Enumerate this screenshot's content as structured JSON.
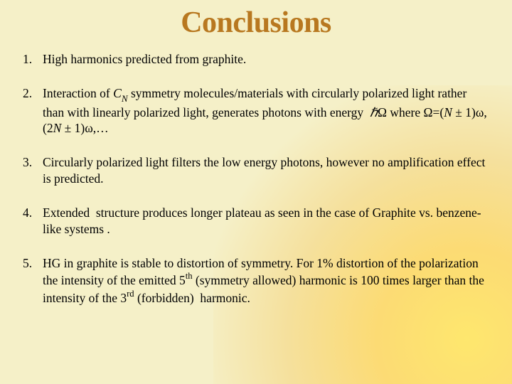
{
  "title": "Conclusions",
  "colors": {
    "background": "#f5f0c8",
    "title_color": "#b87820",
    "text_color": "#000000",
    "gradient_inner": "#ffe664",
    "gradient_outer": "#f5f0c8"
  },
  "typography": {
    "title_font": "Times New Roman",
    "title_size_pt": 32,
    "title_weight": "bold",
    "body_font": "Times New Roman",
    "body_size_pt": 13
  },
  "items": [
    {
      "number": "1.",
      "text_plain": "High harmonics predicted from graphite."
    },
    {
      "number": "2.",
      "text_plain": "Interaction of CN symmetry molecules/materials with circularly polarized light rather than with linearly polarized light, generates photons with energy ℏΩ where Ω=(N ± 1)ω, (2N ± 1)ω,…",
      "formula": {
        "symmetry": "C_N",
        "energy": "ℏΩ",
        "relation": "Ω=(N ± 1)ω, (2N ± 1)ω, …"
      }
    },
    {
      "number": "3.",
      "text_plain": "Circularly polarized light filters the low energy photons, however no amplification effect is predicted."
    },
    {
      "number": "4.",
      "text_plain": "Extended structure produces longer plateau as seen in the case of Graphite vs. benzene-like systems ."
    },
    {
      "number": "5.",
      "text_plain": "HG in graphite is stable to distortion of symmetry. For 1% distortion of the polarization the intensity of the emitted 5th (symmetry allowed) harmonic is 100 times larger than the intensity of the 3rd (forbidden) harmonic.",
      "values": {
        "distortion_percent": 1,
        "allowed_harmonic": 5,
        "forbidden_harmonic": 3,
        "intensity_ratio": 100
      }
    }
  ]
}
